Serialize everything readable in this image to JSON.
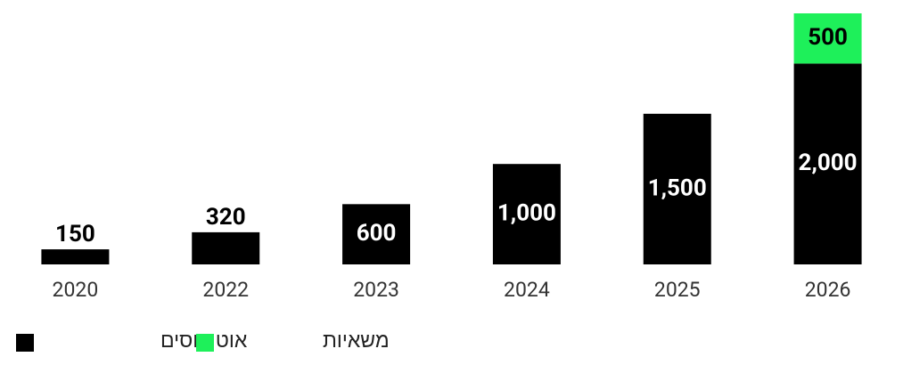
{
  "chart_data": {
    "type": "stacked_bar",
    "categories": [
      "2020",
      "2022",
      "2023",
      "2024",
      "2025",
      "2026"
    ],
    "series": [
      {
        "name": "אוטובוסים",
        "color": "#000000",
        "values": [
          150,
          320,
          600,
          1000,
          1500,
          2000
        ],
        "value_labels": [
          "150",
          "320",
          "600",
          "1,000",
          "1,500",
          "2,000"
        ]
      },
      {
        "name": "משאיות",
        "color": "#1ef05a",
        "values": [
          null,
          null,
          null,
          null,
          null,
          500
        ],
        "value_labels": [
          null,
          null,
          null,
          null,
          null,
          "500"
        ]
      }
    ]
  }
}
